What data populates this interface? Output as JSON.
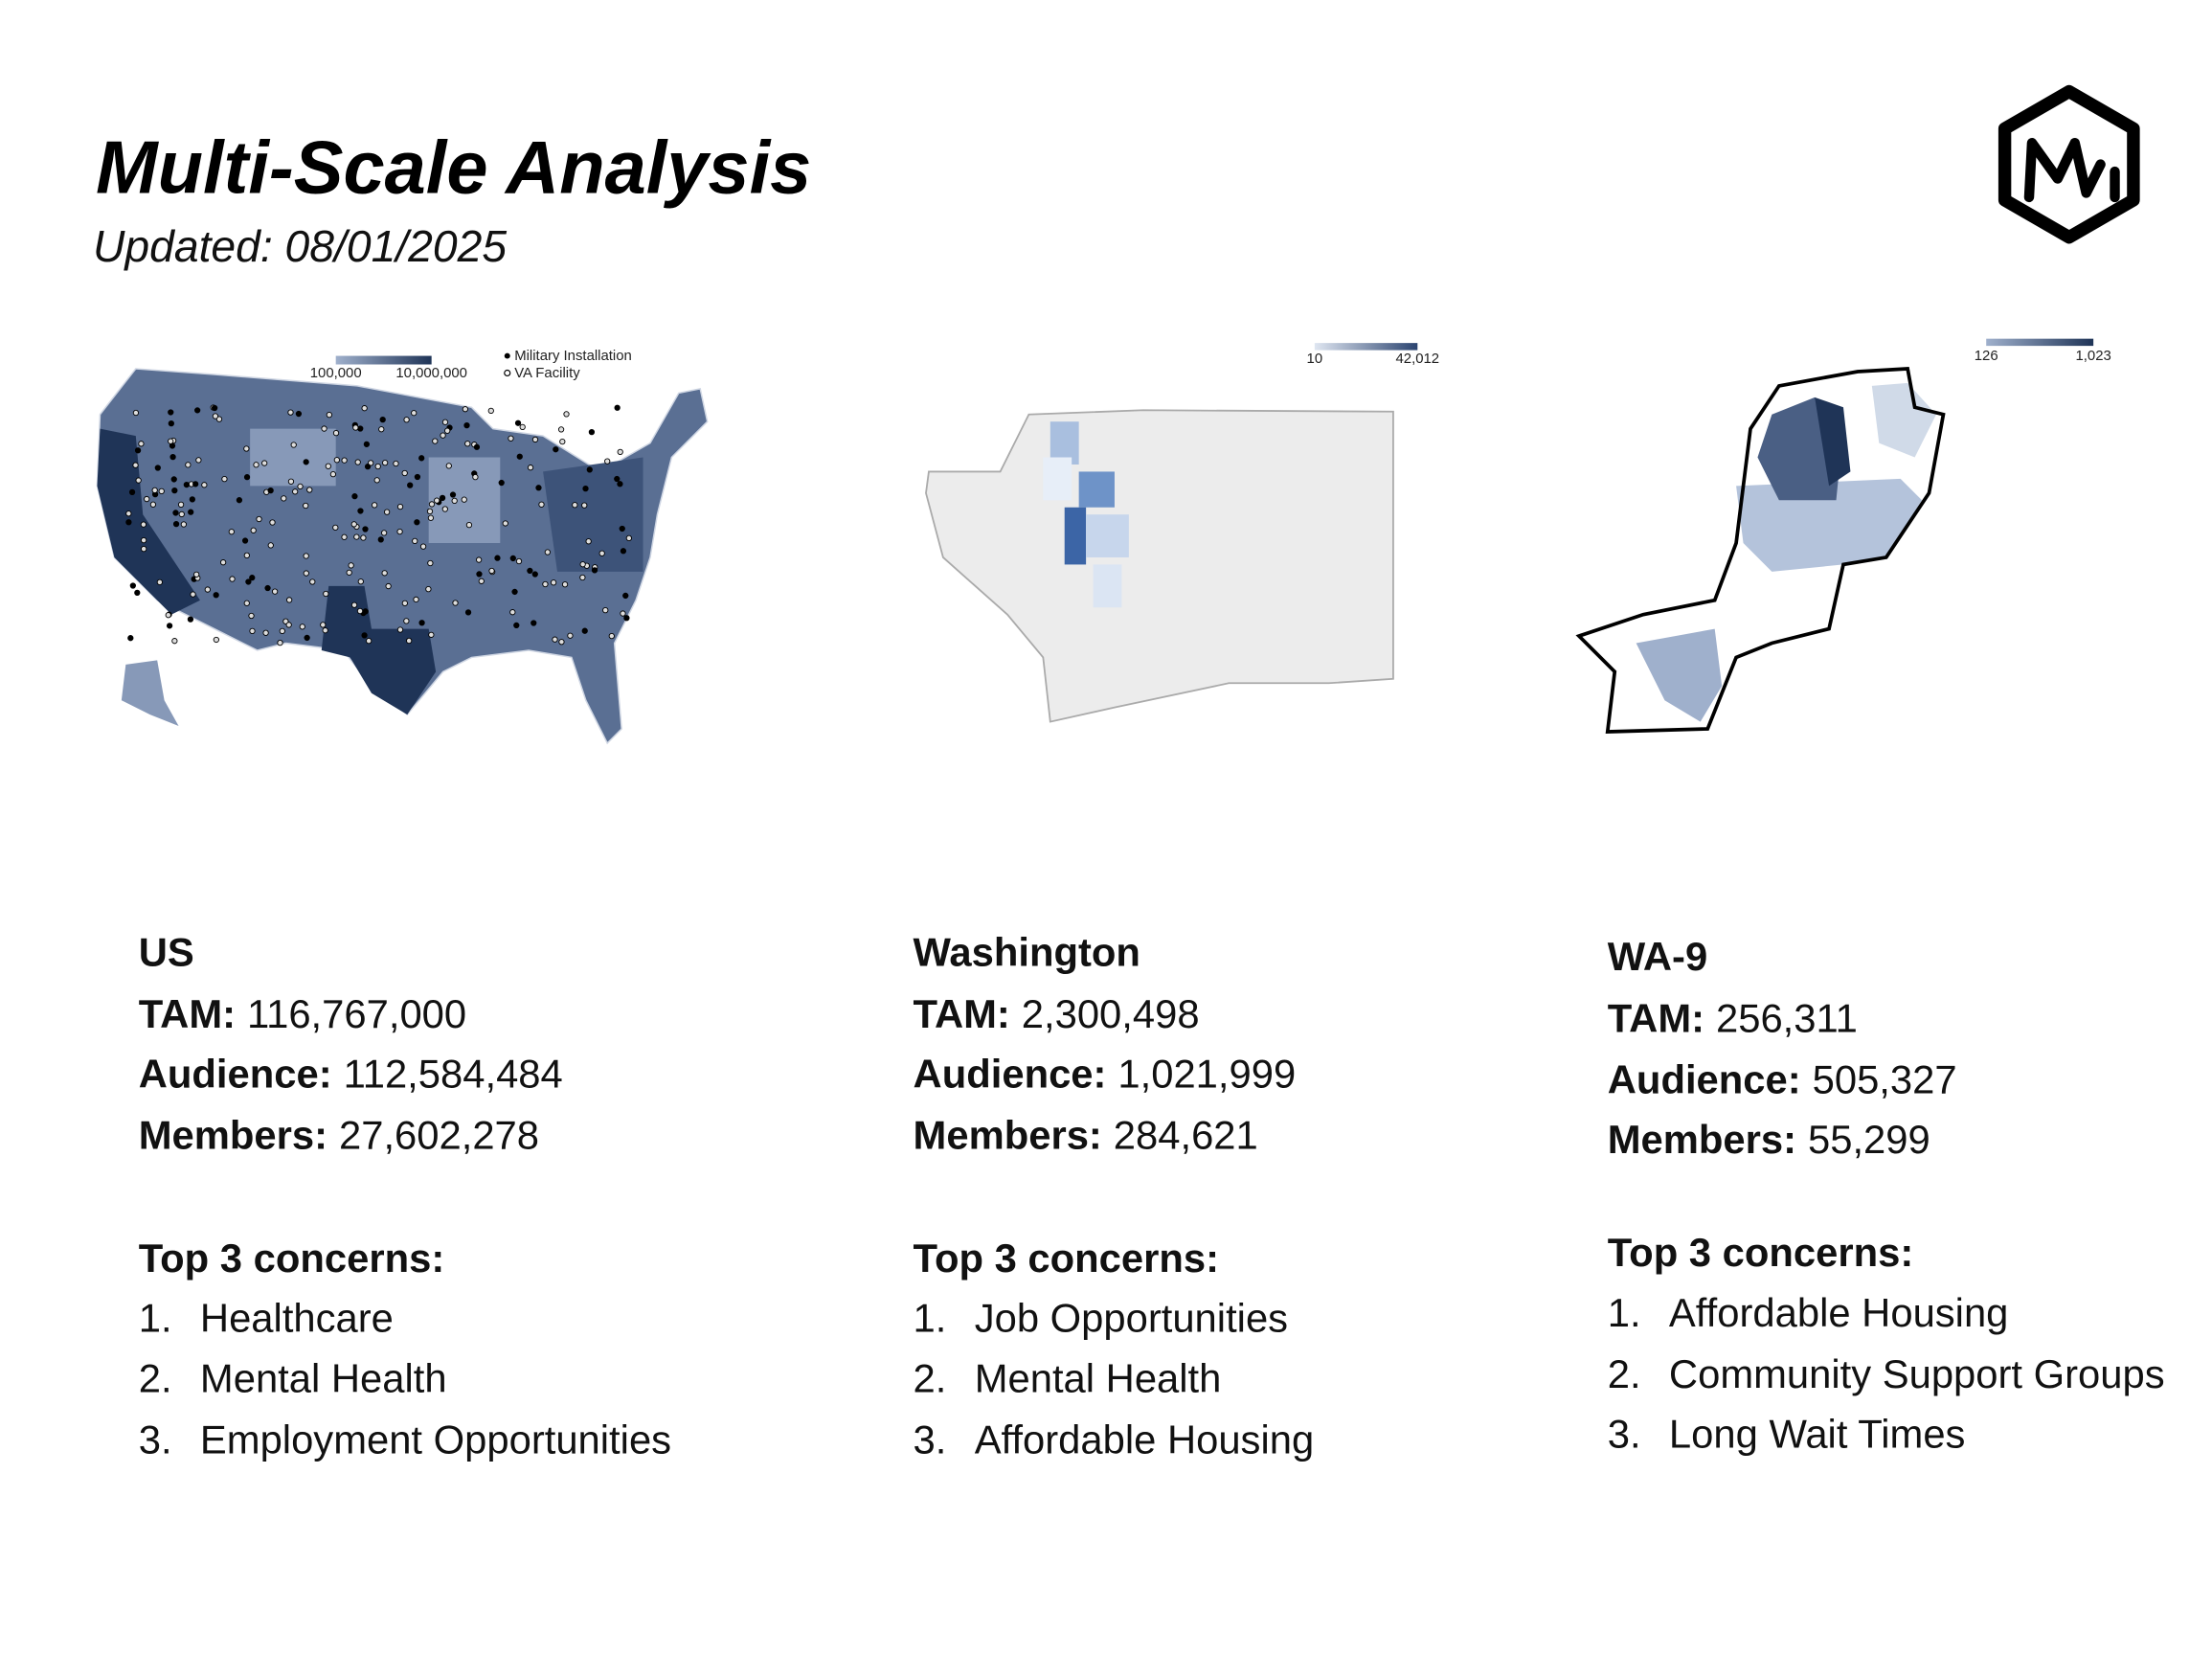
{
  "header": {
    "title": "Multi-Scale Analysis",
    "updated": "Updated: 08/01/2025"
  },
  "panels": [
    {
      "name": "US",
      "legend": {
        "min": "100,000",
        "max": "10,000,000",
        "markers": [
          "Military Installation",
          "VA Facility"
        ]
      },
      "stats": [
        {
          "label": "TAM:",
          "value": "116,767,000"
        },
        {
          "label": "Audience:",
          "value": "112,584,484"
        },
        {
          "label": "Members:",
          "value": "27,602,278"
        }
      ],
      "concerns_title": "Top 3 concerns:",
      "concerns": [
        {
          "number": "1.",
          "text": "Healthcare"
        },
        {
          "number": "2.",
          "text": "Mental Health"
        },
        {
          "number": "3.",
          "text": "Employment Opportunities"
        }
      ]
    },
    {
      "name": "Washington",
      "legend": {
        "min": "10",
        "max": "42,012"
      },
      "stats": [
        {
          "label": "TAM:",
          "value": "2,300,498"
        },
        {
          "label": "Audience:",
          "value": "1,021,999"
        },
        {
          "label": "Members:",
          "value": "284,621"
        }
      ],
      "concerns_title": "Top 3 concerns:",
      "concerns": [
        {
          "number": "1.",
          "text": "Job Opportunities"
        },
        {
          "number": "2.",
          "text": "Mental Health"
        },
        {
          "number": "3.",
          "text": "Affordable Housing"
        }
      ]
    },
    {
      "name": "WA-9",
      "legend": {
        "min": "126",
        "max": "1,023"
      },
      "stats": [
        {
          "label": "TAM:",
          "value": "256,311"
        },
        {
          "label": "Audience:",
          "value": "505,327"
        },
        {
          "label": "Members:",
          "value": "55,299"
        }
      ],
      "concerns_title": "Top 3 concerns:",
      "concerns": [
        {
          "number": "1.",
          "text": "Affordable Housing"
        },
        {
          "number": "2.",
          "text": "Community Support Groups"
        },
        {
          "number": "3.",
          "text": "Long Wait Times"
        }
      ]
    }
  ]
}
